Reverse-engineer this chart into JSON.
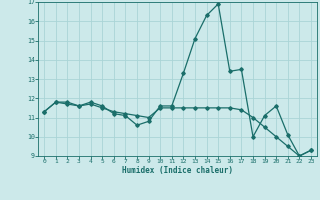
{
  "xlabel": "Humidex (Indice chaleur)",
  "background_color": "#cce9ea",
  "grid_color": "#aad4d6",
  "line_color": "#1a6e6a",
  "x_values": [
    0,
    1,
    2,
    3,
    4,
    5,
    6,
    7,
    8,
    9,
    10,
    11,
    12,
    13,
    14,
    15,
    16,
    17,
    18,
    19,
    20,
    21,
    22,
    23
  ],
  "series1": [
    11.3,
    11.8,
    11.8,
    11.6,
    11.8,
    11.6,
    11.2,
    11.1,
    10.6,
    10.8,
    11.6,
    11.6,
    13.3,
    15.1,
    16.3,
    16.9,
    13.4,
    13.5,
    10.0,
    11.1,
    11.6,
    10.1,
    9.0,
    9.3
  ],
  "series2": [
    11.3,
    11.8,
    11.7,
    11.6,
    11.7,
    11.5,
    11.3,
    11.2,
    11.1,
    11.0,
    11.5,
    11.5,
    11.5,
    11.5,
    11.5,
    11.5,
    11.5,
    11.4,
    11.0,
    10.5,
    10.0,
    9.5,
    9.0,
    9.3
  ],
  "ylim": [
    9,
    17
  ],
  "xlim": [
    -0.5,
    23.5
  ],
  "yticks": [
    9,
    10,
    11,
    12,
    13,
    14,
    15,
    16,
    17
  ],
  "xticks": [
    0,
    1,
    2,
    3,
    4,
    5,
    6,
    7,
    8,
    9,
    10,
    11,
    12,
    13,
    14,
    15,
    16,
    17,
    18,
    19,
    20,
    21,
    22,
    23
  ]
}
